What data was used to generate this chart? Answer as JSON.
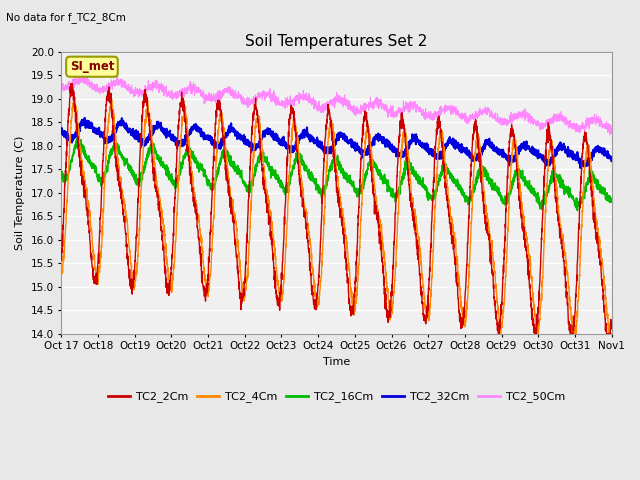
{
  "title": "Soil Temperatures Set 2",
  "subtitle": "No data for f_TC2_8Cm",
  "xlabel": "Time",
  "ylabel": "Soil Temperature (C)",
  "ylim": [
    14.0,
    20.0
  ],
  "yticks": [
    14.0,
    14.5,
    15.0,
    15.5,
    16.0,
    16.5,
    17.0,
    17.5,
    18.0,
    18.5,
    19.0,
    19.5,
    20.0
  ],
  "xtick_labels": [
    "Oct 17",
    "Oct 18",
    "Oct 19",
    "Oct 20",
    "Oct 21",
    "Oct 22",
    "Oct 23",
    "Oct 24",
    "Oct 25",
    "Oct 26",
    "Oct 27",
    "Oct 28",
    "Oct 29",
    "Oct 30",
    "Oct 31",
    "Nov 1"
  ],
  "series_colors": {
    "TC2_2Cm": "#cc0000",
    "TC2_4Cm": "#ff8800",
    "TC2_16Cm": "#00bb00",
    "TC2_32Cm": "#0000dd",
    "TC2_50Cm": "#ff88ff"
  },
  "series_linewidths": {
    "TC2_2Cm": 1.0,
    "TC2_4Cm": 1.0,
    "TC2_16Cm": 1.2,
    "TC2_32Cm": 1.5,
    "TC2_50Cm": 0.8
  },
  "legend_box_color": "#ffff99",
  "legend_box_border": "#999900",
  "SI_met_label": "SI_met",
  "background_color": "#e8e8e8",
  "plot_bg_color": "#f0f0f0",
  "grid_color": "#ffffff",
  "title_fontsize": 11,
  "axis_fontsize": 8,
  "tick_fontsize": 7.5,
  "num_points": 2880,
  "days": 15.0
}
